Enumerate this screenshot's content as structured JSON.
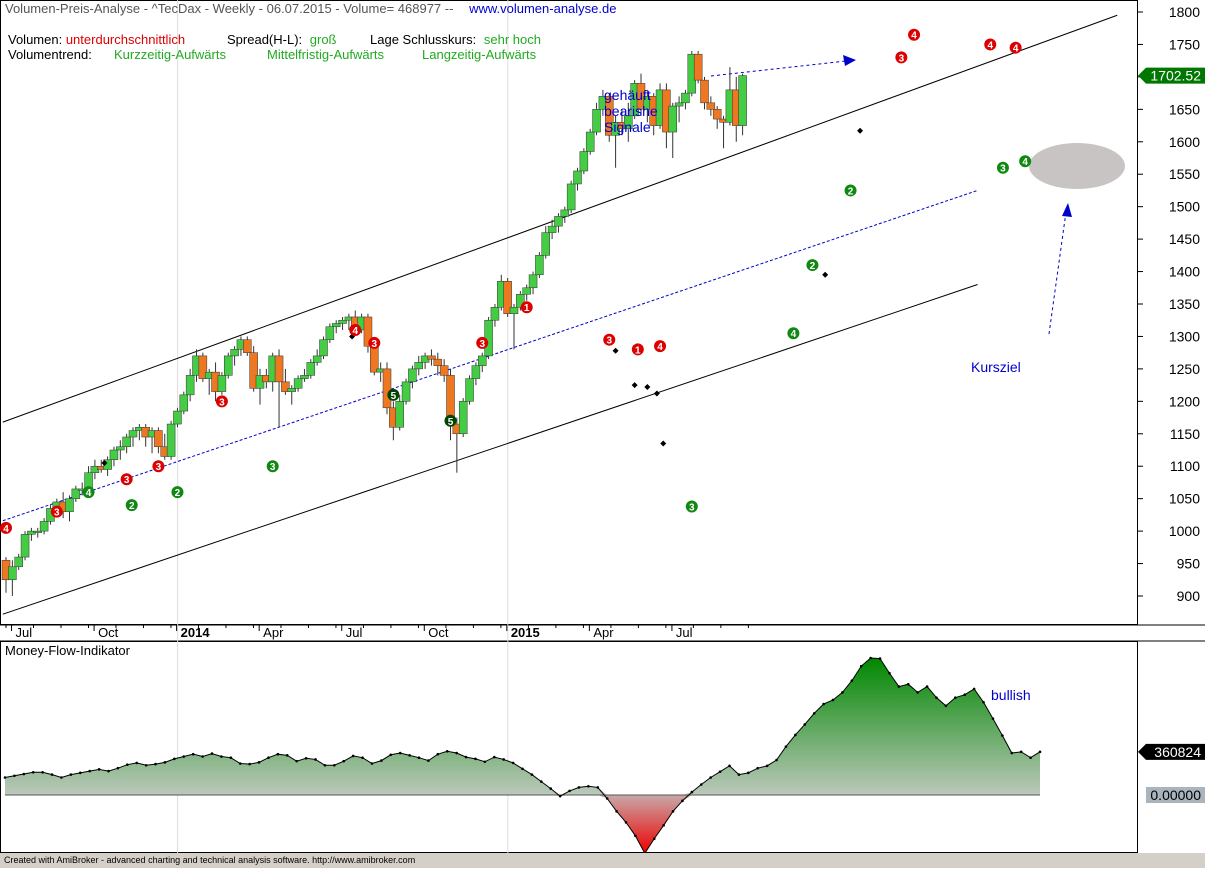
{
  "header": {
    "title": "Volumen-Preis-Analyse - ^TecDax - Weekly  - 06.07.2015 - Volume= 468977 --",
    "url": "www.volumen-analyse.de",
    "volumen_label": "Volumen:",
    "volumen_value": "unterdurchschnittlich",
    "spread_label": "Spread(H-L):",
    "spread_value": "groß",
    "lage_label": "Lage Schlusskurs:",
    "lage_value": "sehr hoch",
    "trend_label": "Volumentrend:",
    "trend_short": "Kurzzeitig-Aufwärts",
    "trend_mid": "Mittelfristig-Aufwärts",
    "trend_long": "Langzeitig-Aufwärts"
  },
  "annotations": {
    "bearish": [
      "gehäuft",
      "bearishe",
      "Signale"
    ],
    "target": "Kursziel",
    "bullish": "bullish"
  },
  "footer_text": "Created with AmiBroker - advanced charting and technical analysis software. http://www.amibroker.com",
  "indicator_title": "Money-Flow-Indikator",
  "colors": {
    "up_candle": "#44cc44",
    "down_candle": "#ee7722",
    "red_signal": "#dd0000",
    "green_signal": "#118811",
    "dark_green_signal": "#004400",
    "annotation_blue": "#0000cc"
  },
  "chart_data": [
    {
      "type": "candlestick",
      "title": "",
      "price_axis": {
        "min": 880,
        "max": 1800,
        "ticks": [
          900,
          950,
          1000,
          1050,
          1100,
          1150,
          1200,
          1250,
          1300,
          1350,
          1400,
          1450,
          1500,
          1550,
          1600,
          1650,
          1700,
          1750,
          1800
        ]
      },
      "last_price_label": "1702.52",
      "time_axis_labels": [
        {
          "label": "Jul",
          "week": 1.5
        },
        {
          "label": "Oct",
          "week": 14.5
        },
        {
          "label": "2014",
          "week": 27.5
        },
        {
          "label": "Apr",
          "week": 40.5
        },
        {
          "label": "Jul",
          "week": 53.5
        },
        {
          "label": "Oct",
          "week": 66.5
        },
        {
          "label": "2015",
          "week": 79.5
        },
        {
          "label": "Apr",
          "week": 92.5
        },
        {
          "label": "Jul",
          "week": 105.5
        }
      ],
      "ohlc": [
        [
          955,
          960,
          905,
          925
        ],
        [
          925,
          955,
          900,
          945
        ],
        [
          945,
          965,
          940,
          960
        ],
        [
          960,
          1000,
          955,
          995
        ],
        [
          995,
          1005,
          985,
          1000
        ],
        [
          1000,
          1005,
          990,
          1000
        ],
        [
          1000,
          1020,
          995,
          1015
        ],
        [
          1015,
          1040,
          1010,
          1035
        ],
        [
          1035,
          1050,
          1025,
          1045
        ],
        [
          1045,
          1060,
          1020,
          1030
        ],
        [
          1030,
          1055,
          1015,
          1050
        ],
        [
          1050,
          1070,
          1045,
          1065
        ],
        [
          1065,
          1075,
          1055,
          1065
        ],
        [
          1065,
          1100,
          1060,
          1090
        ],
        [
          1090,
          1110,
          1080,
          1100
        ],
        [
          1100,
          1110,
          1090,
          1095
        ],
        [
          1095,
          1115,
          1085,
          1110
        ],
        [
          1110,
          1130,
          1100,
          1125
        ],
        [
          1125,
          1140,
          1110,
          1130
        ],
        [
          1130,
          1150,
          1120,
          1145
        ],
        [
          1145,
          1160,
          1130,
          1155
        ],
        [
          1155,
          1165,
          1140,
          1160
        ],
        [
          1160,
          1165,
          1130,
          1145
        ],
        [
          1145,
          1160,
          1120,
          1155
        ],
        [
          1155,
          1160,
          1120,
          1130
        ],
        [
          1130,
          1150,
          1110,
          1115
        ],
        [
          1115,
          1170,
          1110,
          1165
        ],
        [
          1165,
          1190,
          1160,
          1185
        ],
        [
          1185,
          1215,
          1180,
          1210
        ],
        [
          1210,
          1250,
          1200,
          1240
        ],
        [
          1240,
          1280,
          1230,
          1270
        ],
        [
          1270,
          1275,
          1230,
          1235
        ],
        [
          1235,
          1250,
          1210,
          1245
        ],
        [
          1245,
          1260,
          1200,
          1215
        ],
        [
          1215,
          1245,
          1210,
          1240
        ],
        [
          1240,
          1275,
          1235,
          1270
        ],
        [
          1270,
          1285,
          1255,
          1280
        ],
        [
          1280,
          1300,
          1270,
          1295
        ],
        [
          1295,
          1300,
          1270,
          1275
        ],
        [
          1275,
          1285,
          1215,
          1220
        ],
        [
          1220,
          1250,
          1195,
          1240
        ],
        [
          1240,
          1250,
          1220,
          1230
        ],
        [
          1230,
          1275,
          1215,
          1270
        ],
        [
          1270,
          1280,
          1160,
          1230
        ],
        [
          1230,
          1250,
          1210,
          1215
        ],
        [
          1215,
          1225,
          1195,
          1220
        ],
        [
          1220,
          1240,
          1215,
          1235
        ],
        [
          1235,
          1250,
          1230,
          1240
        ],
        [
          1240,
          1265,
          1235,
          1260
        ],
        [
          1260,
          1280,
          1255,
          1270
        ],
        [
          1270,
          1300,
          1265,
          1295
        ],
        [
          1295,
          1320,
          1290,
          1315
        ],
        [
          1315,
          1325,
          1305,
          1320
        ],
        [
          1320,
          1330,
          1310,
          1325
        ],
        [
          1325,
          1335,
          1310,
          1330
        ],
        [
          1330,
          1340,
          1305,
          1310
        ],
        [
          1310,
          1335,
          1305,
          1330
        ],
        [
          1330,
          1335,
          1275,
          1285
        ],
        [
          1285,
          1290,
          1240,
          1245
        ],
        [
          1245,
          1260,
          1230,
          1250
        ],
        [
          1250,
          1260,
          1180,
          1190
        ],
        [
          1190,
          1200,
          1140,
          1160
        ],
        [
          1160,
          1210,
          1155,
          1200
        ],
        [
          1200,
          1235,
          1195,
          1230
        ],
        [
          1230,
          1255,
          1220,
          1250
        ],
        [
          1250,
          1270,
          1240,
          1260
        ],
        [
          1260,
          1275,
          1250,
          1270
        ],
        [
          1270,
          1280,
          1255,
          1265
        ],
        [
          1265,
          1275,
          1240,
          1255
        ],
        [
          1255,
          1265,
          1230,
          1240
        ],
        [
          1240,
          1250,
          1140,
          1165
        ],
        [
          1165,
          1175,
          1090,
          1150
        ],
        [
          1150,
          1205,
          1145,
          1200
        ],
        [
          1200,
          1240,
          1195,
          1235
        ],
        [
          1235,
          1260,
          1225,
          1255
        ],
        [
          1255,
          1275,
          1245,
          1270
        ],
        [
          1270,
          1330,
          1265,
          1325
        ],
        [
          1325,
          1350,
          1315,
          1345
        ],
        [
          1345,
          1395,
          1340,
          1385
        ],
        [
          1385,
          1390,
          1330,
          1335
        ],
        [
          1335,
          1350,
          1280,
          1345
        ],
        [
          1345,
          1370,
          1340,
          1365
        ],
        [
          1365,
          1380,
          1355,
          1375
        ],
        [
          1375,
          1400,
          1365,
          1395
        ],
        [
          1395,
          1430,
          1390,
          1425
        ],
        [
          1425,
          1470,
          1420,
          1460
        ],
        [
          1460,
          1480,
          1450,
          1470
        ],
        [
          1470,
          1490,
          1460,
          1485
        ],
        [
          1485,
          1500,
          1475,
          1495
        ],
        [
          1495,
          1540,
          1490,
          1535
        ],
        [
          1535,
          1560,
          1525,
          1555
        ],
        [
          1555,
          1590,
          1550,
          1585
        ],
        [
          1585,
          1620,
          1580,
          1615
        ],
        [
          1615,
          1660,
          1610,
          1650
        ],
        [
          1650,
          1680,
          1640,
          1670
        ],
        [
          1670,
          1675,
          1600,
          1610
        ],
        [
          1610,
          1640,
          1560,
          1630
        ],
        [
          1630,
          1650,
          1610,
          1620
        ],
        [
          1620,
          1660,
          1600,
          1640
        ],
        [
          1640,
          1695,
          1635,
          1690
        ],
        [
          1690,
          1705,
          1640,
          1650
        ],
        [
          1650,
          1680,
          1630,
          1670
        ],
        [
          1670,
          1675,
          1610,
          1625
        ],
        [
          1625,
          1690,
          1620,
          1680
        ],
        [
          1680,
          1690,
          1590,
          1615
        ],
        [
          1615,
          1660,
          1575,
          1655
        ],
        [
          1655,
          1670,
          1630,
          1660
        ],
        [
          1660,
          1680,
          1650,
          1675
        ],
        [
          1675,
          1740,
          1670,
          1735
        ],
        [
          1735,
          1740,
          1690,
          1695
        ],
        [
          1695,
          1700,
          1650,
          1660
        ],
        [
          1660,
          1670,
          1640,
          1650
        ],
        [
          1650,
          1655,
          1620,
          1635
        ],
        [
          1635,
          1640,
          1590,
          1630
        ],
        [
          1630,
          1715,
          1625,
          1680
        ],
        [
          1680,
          1700,
          1600,
          1625
        ],
        [
          1625,
          1705,
          1610,
          1702
        ]
      ],
      "signals": [
        {
          "week": 0,
          "price": 1005,
          "num": "4",
          "color": "red"
        },
        {
          "week": 8,
          "price": 1030,
          "num": "3",
          "color": "red"
        },
        {
          "week": 13,
          "price": 1060,
          "num": "4",
          "color": "green"
        },
        {
          "week": 19,
          "price": 1080,
          "num": "3",
          "color": "red"
        },
        {
          "week": 19.8,
          "price": 1040,
          "num": "2",
          "color": "green"
        },
        {
          "week": 24,
          "price": 1100,
          "num": "3",
          "color": "red"
        },
        {
          "week": 27,
          "price": 1060,
          "num": "2",
          "color": "green"
        },
        {
          "week": 34,
          "price": 1200,
          "num": "3",
          "color": "red"
        },
        {
          "week": 42,
          "price": 1100,
          "num": "3",
          "color": "green"
        },
        {
          "week": 55,
          "price": 1310,
          "num": "4",
          "color": "red"
        },
        {
          "week": 58,
          "price": 1290,
          "num": "3",
          "color": "red"
        },
        {
          "week": 61,
          "price": 1210,
          "num": "5",
          "color": "dark"
        },
        {
          "week": 70,
          "price": 1170,
          "num": "5",
          "color": "dark"
        },
        {
          "week": 75,
          "price": 1290,
          "num": "3",
          "color": "red"
        },
        {
          "week": 82,
          "price": 1345,
          "num": "1",
          "color": "red"
        },
        {
          "week": 95,
          "price": 1295,
          "num": "3",
          "color": "red"
        },
        {
          "week": 99.5,
          "price": 1280,
          "num": "1",
          "color": "red"
        },
        {
          "week": 103,
          "price": 1285,
          "num": "4",
          "color": "red"
        },
        {
          "week": 108,
          "price": 1038,
          "num": "3",
          "color": "green"
        },
        {
          "week": 124,
          "price": 1305,
          "num": "4",
          "color": "green"
        },
        {
          "week": 127,
          "price": 1410,
          "num": "2",
          "color": "green"
        },
        {
          "week": 133,
          "price": 1525,
          "num": "2",
          "color": "green"
        },
        {
          "week": 141,
          "price": 1730,
          "num": "3",
          "color": "red"
        },
        {
          "week": 143,
          "price": 1765,
          "num": "4",
          "color": "red"
        },
        {
          "week": 155,
          "price": 1750,
          "num": "4",
          "color": "red"
        },
        {
          "week": 157,
          "price": 1560,
          "num": "3",
          "color": "green"
        },
        {
          "week": 159,
          "price": 1745,
          "num": "4",
          "color": "red"
        },
        {
          "week": 160.5,
          "price": 1570,
          "num": "4",
          "color": "green"
        }
      ]
    },
    {
      "type": "area",
      "title": "Money-Flow-Indikator",
      "last_value_label": "360824",
      "zero_label": "0.00000",
      "values": [
        0.3,
        0.33,
        0.36,
        0.39,
        0.39,
        0.35,
        0.3,
        0.35,
        0.38,
        0.41,
        0.44,
        0.41,
        0.46,
        0.52,
        0.55,
        0.51,
        0.53,
        0.56,
        0.62,
        0.66,
        0.7,
        0.66,
        0.71,
        0.66,
        0.64,
        0.54,
        0.53,
        0.56,
        0.64,
        0.7,
        0.68,
        0.58,
        0.63,
        0.61,
        0.51,
        0.51,
        0.58,
        0.67,
        0.64,
        0.54,
        0.59,
        0.69,
        0.72,
        0.68,
        0.64,
        0.59,
        0.7,
        0.75,
        0.72,
        0.65,
        0.62,
        0.57,
        0.65,
        0.61,
        0.55,
        0.45,
        0.35,
        0.23,
        0.11,
        -0.02,
        0.07,
        0.13,
        0.15,
        0.13,
        -0.06,
        -0.28,
        -0.47,
        -0.7,
        -1.0,
        -0.75,
        -0.52,
        -0.28,
        -0.1,
        0.05,
        0.18,
        0.3,
        0.4,
        0.5,
        0.35,
        0.38,
        0.46,
        0.5,
        0.6,
        0.83,
        1.03,
        1.21,
        1.4,
        1.56,
        1.63,
        1.76,
        1.96,
        2.21,
        2.35,
        2.34,
        2.09,
        1.86,
        1.9,
        1.76,
        1.86,
        1.67,
        1.53,
        1.67,
        1.72,
        1.82,
        1.59,
        1.31,
        1.02,
        0.72,
        0.74,
        0.64,
        0.74
      ],
      "zero_frac": 0.0
    }
  ]
}
